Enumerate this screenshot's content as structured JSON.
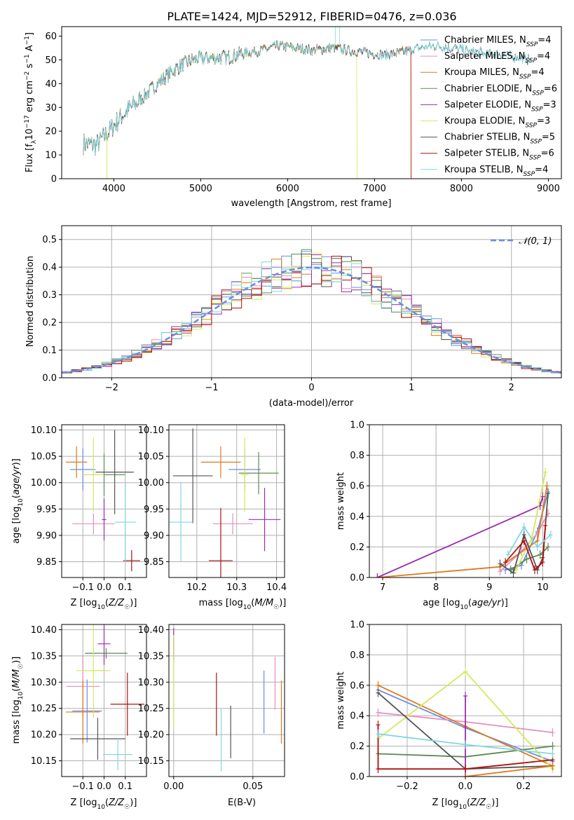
{
  "figure": {
    "title": "PLATE=1424, MJD=52912, FIBERID=0476, z=0.036"
  },
  "colors": {
    "chabrier_miles": "#6a8ee0",
    "salpeter_miles": "#e88cbf",
    "kroupa_miles": "#dd7a1e",
    "chabrier_elodie": "#5a8a55",
    "salpeter_elodie": "#9a2cb0",
    "kroupa_elodie": "#d4e85a",
    "chabrier_stelib": "#555555",
    "salpeter_stelib": "#b01010",
    "kroupa_stelib": "#7fd8e0",
    "grid": "#b0b0b0"
  },
  "chart_data": [
    {
      "id": "spectrum",
      "type": "line",
      "xlabel": "wavelength [Angstrom, rest frame]",
      "ylabel": "Flux [f",
      "ylabel_full": "Flux [fλ10⁻¹⁷ erg cm⁻² s⁻¹ A⁻¹]",
      "xlim": [
        3400,
        9150
      ],
      "ylim": [
        0,
        64
      ],
      "xticks": [
        4000,
        5000,
        6000,
        7000,
        8000,
        9000
      ],
      "yticks": [
        0,
        10,
        20,
        30,
        40,
        50,
        60
      ],
      "grid": false,
      "legend_position": "right",
      "legend": [
        {
          "label": "Chabrier MILES, N",
          "sub": "SSP",
          "suffix": "=4",
          "color_key": "chabrier_miles"
        },
        {
          "label": "Salpeter MILES, N",
          "sub": "SSP",
          "suffix": "=4",
          "color_key": "salpeter_miles"
        },
        {
          "label": "Kroupa MILES, N",
          "sub": "SSP",
          "suffix": "=4",
          "color_key": "kroupa_miles"
        },
        {
          "label": "Chabrier ELODIE, N",
          "sub": "SSP",
          "suffix": "=6",
          "color_key": "chabrier_elodie"
        },
        {
          "label": "Salpeter ELODIE, N",
          "sub": "SSP",
          "suffix": "=3",
          "color_key": "salpeter_elodie"
        },
        {
          "label": "Kroupa ELODIE, N",
          "sub": "SSP",
          "suffix": "=3",
          "color_key": "kroupa_elodie"
        },
        {
          "label": "Chabrier STELIB, N",
          "sub": "SSP",
          "suffix": "=5",
          "color_key": "chabrier_stelib"
        },
        {
          "label": "Salpeter STELIB, N",
          "sub": "SSP",
          "suffix": "=6",
          "color_key": "salpeter_stelib"
        },
        {
          "label": "Kroupa STELIB, N",
          "sub": "SSP",
          "suffix": "=4",
          "color_key": "kroupa_stelib"
        }
      ],
      "continuum": [
        [
          3650,
          15
        ],
        [
          3800,
          14
        ],
        [
          3950,
          20
        ],
        [
          4100,
          27
        ],
        [
          4300,
          33
        ],
        [
          4500,
          40
        ],
        [
          4700,
          46
        ],
        [
          4900,
          50
        ],
        [
          5100,
          51
        ],
        [
          5300,
          51
        ],
        [
          5500,
          53
        ],
        [
          5700,
          54
        ],
        [
          5900,
          56
        ],
        [
          6100,
          55
        ],
        [
          6300,
          54
        ],
        [
          6500,
          55
        ],
        [
          6700,
          54
        ],
        [
          6900,
          53
        ],
        [
          7100,
          52
        ],
        [
          7300,
          53
        ],
        [
          7500,
          55
        ],
        [
          7700,
          56
        ],
        [
          7900,
          55
        ],
        [
          8200,
          53
        ],
        [
          8500,
          52
        ],
        [
          8800,
          50
        ]
      ],
      "lines": [
        {
          "name": "kroupa_miles",
          "x_end": 7420,
          "drop_at": 7420
        },
        {
          "name": "kroupa_elodie",
          "x_end": 6800,
          "drop_at": 6800
        },
        {
          "name": "salpeter_stelib",
          "x_end": 7420,
          "drop_at": 7420
        },
        {
          "name": "chabrier_stelib",
          "x_end": 8800
        },
        {
          "name": "kroupa_stelib",
          "x_end": 8800
        }
      ],
      "drop_at_3920": 3920
    },
    {
      "id": "residual_hist",
      "type": "bar",
      "xlabel": "(data-model)/error",
      "ylabel": "Normed distribution",
      "xlim": [
        -2.5,
        2.5
      ],
      "ylim": [
        0,
        0.55
      ],
      "xticks": [
        -2,
        -1,
        0,
        1,
        2
      ],
      "yticks": [
        0.0,
        0.1,
        0.2,
        0.3,
        0.4,
        0.5
      ],
      "grid": true,
      "legend_position": "top-right",
      "legend": [
        {
          "label": "𝒩(0, 1)",
          "color_key": "chabrier_miles",
          "style": "dashed"
        }
      ],
      "bin_width": 0.1,
      "x_start": -2.5
    },
    {
      "id": "z_age",
      "type": "scatter",
      "xlabel": "Z [log",
      "xlabel_full": "Z [log₁₀(Z/Z☉)]",
      "ylabel_full": "age [log₁₀(age/yr)]",
      "xlim": [
        -0.2,
        0.2
      ],
      "ylim": [
        9.82,
        10.11
      ],
      "xticks": [
        -0.1,
        0.0,
        0.1
      ],
      "yticks": [
        9.85,
        9.9,
        9.95,
        10.0,
        10.05,
        10.1
      ],
      "grid": true,
      "points": [
        {
          "color_key": "chabrier_miles",
          "x": -0.1,
          "y": 10.025,
          "xerr": 0.06,
          "yerr": 0.04
        },
        {
          "color_key": "salpeter_miles",
          "x": -0.05,
          "y": 9.922,
          "xerr": 0.1,
          "yerr": 0.02
        },
        {
          "color_key": "kroupa_miles",
          "x": -0.13,
          "y": 10.039,
          "xerr": 0.05,
          "yerr": 0.03
        },
        {
          "color_key": "chabrier_elodie",
          "x": 0.0,
          "y": 10.015,
          "xerr": 0.1,
          "yerr": 0.04
        },
        {
          "color_key": "salpeter_elodie",
          "x": 0.0,
          "y": 9.93,
          "xerr": 0.01,
          "yerr": 0.04
        },
        {
          "color_key": "kroupa_elodie",
          "x": -0.05,
          "y": 10.015,
          "xerr": 0.05,
          "yerr": 0.07
        },
        {
          "color_key": "chabrier_stelib",
          "x": 0.05,
          "y": 10.02,
          "xerr": 0.09,
          "yerr": 0.08
        },
        {
          "color_key": "salpeter_stelib",
          "x": 0.13,
          "y": 9.852,
          "xerr": 0.04,
          "yerr": 0.02
        },
        {
          "color_key": "kroupa_stelib",
          "x": 0.1,
          "y": 9.925,
          "xerr": 0.05,
          "yerr": 0.075
        }
      ]
    },
    {
      "id": "mass_age",
      "type": "scatter",
      "xlabel_full": "mass [log₁₀(M/M☉)]",
      "xlim": [
        10.13,
        10.42
      ],
      "ylim": [
        9.82,
        10.11
      ],
      "xticks": [
        10.2,
        10.3,
        10.4
      ],
      "yticks": [
        9.85,
        9.9,
        9.95,
        10.0,
        10.05,
        10.1
      ],
      "grid": true,
      "points": [
        {
          "color_key": "chabrier_miles",
          "x": 10.32,
          "y": 10.025,
          "xerr": 0.04,
          "yerr": 0.04
        },
        {
          "color_key": "salpeter_miles",
          "x": 10.29,
          "y": 9.922,
          "xerr": 0.05,
          "yerr": 0.02
        },
        {
          "color_key": "kroupa_miles",
          "x": 10.26,
          "y": 10.039,
          "xerr": 0.05,
          "yerr": 0.03
        },
        {
          "color_key": "chabrier_elodie",
          "x": 10.355,
          "y": 10.018,
          "xerr": 0.05,
          "yerr": 0.04
        },
        {
          "color_key": "salpeter_elodie",
          "x": 10.37,
          "y": 9.93,
          "xerr": 0.04,
          "yerr": 0.06
        },
        {
          "color_key": "kroupa_elodie",
          "x": 10.32,
          "y": 10.015,
          "xerr": 0.01,
          "yerr": 0.07
        },
        {
          "color_key": "chabrier_stelib",
          "x": 10.19,
          "y": 10.013,
          "xerr": 0.05,
          "yerr": 0.09
        },
        {
          "color_key": "salpeter_stelib",
          "x": 10.26,
          "y": 9.852,
          "xerr": 0.03,
          "yerr": 0.1
        },
        {
          "color_key": "kroupa_stelib",
          "x": 10.16,
          "y": 9.925,
          "xerr": 0.03,
          "yerr": 0.075
        }
      ]
    },
    {
      "id": "age_weight",
      "type": "line",
      "xlabel_full": "age [log₁₀(age/yr)]",
      "ylabel": "mass weight",
      "xlim": [
        6.75,
        10.35
      ],
      "ylim": [
        0,
        1.0
      ],
      "xticks": [
        7,
        8,
        9,
        10
      ],
      "yticks": [
        0.0,
        0.2,
        0.4,
        0.6,
        0.8,
        1.0
      ],
      "grid": true,
      "series": [
        {
          "color_key": "chabrier_miles",
          "points": [
            [
              9.3,
              0.05
            ],
            [
              9.6,
              0.08
            ],
            [
              9.9,
              0.3
            ],
            [
              10.1,
              0.56
            ]
          ]
        },
        {
          "color_key": "salpeter_miles",
          "points": [
            [
              9.2,
              0.04
            ],
            [
              9.6,
              0.17
            ],
            [
              9.9,
              0.29
            ],
            [
              10.1,
              0.42
            ]
          ]
        },
        {
          "color_key": "kroupa_miles",
          "points": [
            [
              6.9,
              0.0
            ],
            [
              9.2,
              0.07
            ],
            [
              9.9,
              0.24
            ],
            [
              10.08,
              0.6
            ]
          ]
        },
        {
          "color_key": "chabrier_elodie",
          "points": [
            [
              9.4,
              0.05
            ],
            [
              9.7,
              0.12
            ],
            [
              9.95,
              0.15
            ],
            [
              10.1,
              0.2
            ]
          ]
        },
        {
          "color_key": "salpeter_elodie",
          "points": [
            [
              6.9,
              0.0
            ],
            [
              9.95,
              0.47
            ],
            [
              10.0,
              0.53
            ]
          ]
        },
        {
          "color_key": "kroupa_elodie",
          "points": [
            [
              9.5,
              0.05
            ],
            [
              9.8,
              0.26
            ],
            [
              10.05,
              0.69
            ]
          ]
        },
        {
          "color_key": "chabrier_stelib",
          "points": [
            [
              9.2,
              0.09
            ],
            [
              9.45,
              0.03
            ],
            [
              9.65,
              0.28
            ],
            [
              9.9,
              0.05
            ],
            [
              10.0,
              0.13
            ],
            [
              10.1,
              0.55
            ]
          ]
        },
        {
          "color_key": "salpeter_stelib",
          "points": [
            [
              9.3,
              0.1
            ],
            [
              9.65,
              0.24
            ],
            [
              9.85,
              0.05
            ],
            [
              10.0,
              0.1
            ],
            [
              10.05,
              0.34
            ]
          ]
        },
        {
          "color_key": "kroupa_stelib",
          "points": [
            [
              9.35,
              0.15
            ],
            [
              9.65,
              0.33
            ],
            [
              9.9,
              0.2
            ],
            [
              10.15,
              0.28
            ]
          ]
        }
      ]
    },
    {
      "id": "z_mass",
      "type": "scatter",
      "xlabel_full": "Z [log₁₀(Z/Z☉)]",
      "ylabel_full": "mass [log₁₀(M/M☉)]",
      "xlim": [
        -0.2,
        0.2
      ],
      "ylim": [
        10.12,
        10.41
      ],
      "xticks": [
        -0.1,
        0.0,
        0.1
      ],
      "yticks": [
        10.15,
        10.2,
        10.25,
        10.3,
        10.35,
        10.4
      ],
      "grid": true,
      "points": [
        {
          "color_key": "chabrier_miles",
          "x": -0.08,
          "y": 10.245,
          "xerr": 0.07,
          "yerr": 0.06
        },
        {
          "color_key": "salpeter_miles",
          "x": -0.1,
          "y": 10.292,
          "xerr": 0.08,
          "yerr": 0.06
        },
        {
          "color_key": "kroupa_miles",
          "x": -0.1,
          "y": 10.243,
          "xerr": 0.08,
          "yerr": 0.06
        },
        {
          "color_key": "chabrier_elodie",
          "x": 0.01,
          "y": 10.355,
          "xerr": 0.1,
          "yerr": 0.01
        },
        {
          "color_key": "salpeter_elodie",
          "x": 0.0,
          "y": 10.373,
          "xerr": 0.03,
          "yerr": 0.04
        },
        {
          "color_key": "kroupa_elodie",
          "x": -0.05,
          "y": 10.322,
          "xerr": 0.08,
          "yerr": 0.09
        },
        {
          "color_key": "chabrier_stelib",
          "x": -0.03,
          "y": 10.192,
          "xerr": 0.13,
          "yerr": 0.04
        },
        {
          "color_key": "salpeter_stelib",
          "x": 0.11,
          "y": 10.258,
          "xerr": 0.08,
          "yerr": 0.06
        },
        {
          "color_key": "kroupa_stelib",
          "x": 0.065,
          "y": 10.162,
          "xerr": 0.07,
          "yerr": 0.03
        }
      ]
    },
    {
      "id": "ebv_mass",
      "type": "scatter",
      "xlabel": "E(B-V)",
      "xlim": [
        -0.003,
        0.07
      ],
      "ylim": [
        10.12,
        10.41
      ],
      "xticks": [
        0.0,
        0.05
      ],
      "yticks": [
        10.15,
        10.2,
        10.25,
        10.3,
        10.35,
        10.4
      ],
      "grid": true,
      "points": [
        {
          "color_key": "chabrier_miles",
          "x": 0.057,
          "y": 10.262,
          "yerr": 0.06
        },
        {
          "color_key": "salpeter_miles",
          "x": 0.064,
          "y": 10.298,
          "yerr": 0.05
        },
        {
          "color_key": "kroupa_miles",
          "x": 0.068,
          "y": 10.243,
          "yerr": 0.06
        },
        {
          "color_key": "chabrier_elodie",
          "x": 0.0,
          "y": 10.36,
          "yerr": 0.01
        },
        {
          "color_key": "salpeter_elodie",
          "x": 0.0,
          "y": 10.373,
          "yerr": 0.03
        },
        {
          "color_key": "kroupa_elodie",
          "x": 0.0,
          "y": 10.3,
          "yerr": 0.09
        },
        {
          "color_key": "chabrier_stelib",
          "x": 0.036,
          "y": 10.205,
          "yerr": 0.05
        },
        {
          "color_key": "salpeter_stelib",
          "x": 0.027,
          "y": 10.258,
          "yerr": 0.06
        },
        {
          "color_key": "kroupa_stelib",
          "x": 0.03,
          "y": 10.19,
          "yerr": 0.06
        }
      ]
    },
    {
      "id": "z_weight",
      "type": "line",
      "xlabel_full": "Z [log₁₀(Z/Z☉)]",
      "ylabel": "mass weight",
      "xlim": [
        -0.33,
        0.33
      ],
      "ylim": [
        0,
        1.0
      ],
      "xticks": [
        -0.2,
        0.0,
        0.2
      ],
      "yticks": [
        0.0,
        0.2,
        0.4,
        0.6,
        0.8,
        1.0
      ],
      "grid": true,
      "series": [
        {
          "color_key": "chabrier_miles",
          "points": [
            [
              -0.3,
              0.57
            ],
            [
              0.0,
              0.32
            ],
            [
              0.3,
              0.1
            ]
          ]
        },
        {
          "color_key": "salpeter_miles",
          "points": [
            [
              -0.3,
              0.42
            ],
            [
              0.0,
              0.36
            ],
            [
              0.3,
              0.29
            ]
          ]
        },
        {
          "color_key": "kroupa_miles",
          "points": [
            [
              -0.3,
              0.6
            ],
            [
              0.0,
              0.33
            ],
            [
              0.3,
              0.07
            ]
          ]
        },
        {
          "color_key": "chabrier_elodie",
          "points": [
            [
              -0.3,
              0.15
            ],
            [
              0.0,
              0.13
            ],
            [
              0.3,
              0.2
            ]
          ]
        },
        {
          "color_key": "salpeter_elodie",
          "points": [
            [
              0.0,
              0.0
            ],
            [
              0.0,
              0.53
            ]
          ]
        },
        {
          "color_key": "kroupa_elodie",
          "points": [
            [
              -0.3,
              0.25
            ],
            [
              0.0,
              0.69
            ],
            [
              0.3,
              0.05
            ]
          ]
        },
        {
          "color_key": "chabrier_stelib",
          "points": [
            [
              -0.3,
              0.55
            ],
            [
              0.0,
              0.05
            ],
            [
              0.3,
              0.07
            ]
          ]
        },
        {
          "color_key": "salpeter_stelib",
          "points": [
            [
              -0.3,
              0.34
            ],
            [
              -0.3,
              0.05
            ],
            [
              0.0,
              0.05
            ],
            [
              0.3,
              0.11
            ]
          ]
        },
        {
          "color_key": "kroupa_stelib",
          "points": [
            [
              -0.3,
              0.28
            ],
            [
              0.0,
              0.21
            ],
            [
              0.3,
              0.15
            ]
          ]
        }
      ],
      "extra_lines": [
        {
          "color_key": "kroupa_miles",
          "points": [
            [
              0.0,
              0.0
            ],
            [
              0.3,
              0.07
            ]
          ]
        }
      ]
    }
  ]
}
